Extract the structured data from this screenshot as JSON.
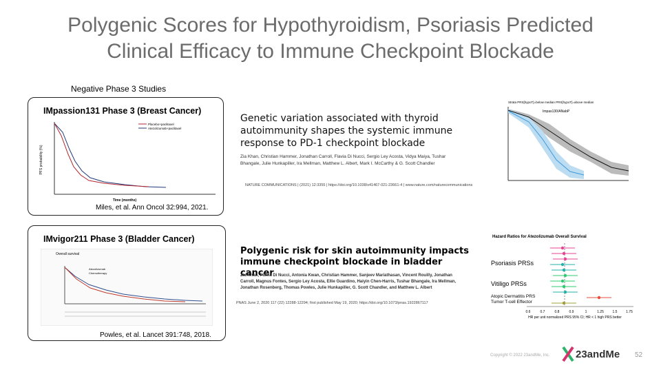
{
  "header": {
    "title_line1": "Polygenic Scores for Hypothyroidism, Psoriasis Predicted",
    "title_line2": "Clinical Efficacy to Immune Checkpoint Blockade"
  },
  "section_label": "Negative Phase 3 Studies",
  "study1": {
    "title": "IMpassion131 Phase 3 (Breast Cancer)",
    "x_label": "Time (months)",
    "y_label": "PFS probability (%)",
    "legend": [
      "Placebo+paclitaxel",
      "Atezolizumab+paclitaxel"
    ],
    "citation": "Miles, et al. Ann Oncol 32:994, 2021."
  },
  "study2": {
    "title": "IMvigor211 Phase 3 (Bladder Cancer)",
    "panel_label": "Overall survival",
    "legend": [
      "Atezolizumab",
      "Chemotherapy"
    ],
    "citation": "Powles, et al. Lancet 391:748, 2018."
  },
  "paper1": {
    "title": "Genetic variation associated with thyroid autoimmunity shapes the systemic immune response to PD-1 checkpoint blockade",
    "authors": "Zia Khan, Christian Hammer, Jonathan Carroll, Flavia Di Nucci, Sergio Ley Acosta, Vidya Maiya, Tushar Bhangale, Julie Hunkapiller, Ira Mellman, Matthew L. Albert, Mark I. McCarthy & G. Scott Chandler",
    "journal": "NATURE COMMUNICATIONS | (2021) 12:3355 | https://doi.org/10.1038/s41467-021-23661-4 | www.nature.com/naturecommunications"
  },
  "paper2": {
    "title": "Polygenic risk for skin autoimmunity impacts immune checkpoint blockade in bladder cancer",
    "authors": "Zia Khan, Flavia Di Nucci, Antonia Kwan, Christian Hammer, Sanjeev Mariathasan, Vincent Rouilly, Jonathan Carroll, Magnus Fontes, Sergio Ley Acosta, Ellie Guardino, Haiyin Chen-Harris, Tushar Bhangale, Ira Mellman, Jonathan Rosenberg, Thomas Powles, Julie Hunkapiller, G. Scott Chandler, and Matthew L. Albert",
    "journal": "PNAS June 2, 2020 117 (22) 12288-12294; first published May 19, 2020; https://doi.org/10.1073/pnas.1922867117"
  },
  "km_panel": {
    "legend": "Strata  PRS[hypoT]=below median  PRS[hypoT]=above median",
    "label": "Impas130/ANabP"
  },
  "forest": {
    "title": "Hazard Ratios for Atezolizumab Overall Survival",
    "groups": [
      "Psoriasis PRSs",
      "Vitiligo PRSs",
      "Atopic Dermatitis PRS",
      "Tumor T-cell Effector"
    ],
    "ticks": [
      "0.6",
      "0.7",
      "0.8",
      "0.9",
      "1",
      "1.25",
      "1.5",
      "1.75"
    ],
    "x_label": "HR per unit normalized PRS 95% CI; HR < 1 high PRS better"
  },
  "footer": {
    "copyright": "Copyright © 2022 23andMe, Inc.",
    "logo": "23andMe",
    "page": "52"
  }
}
